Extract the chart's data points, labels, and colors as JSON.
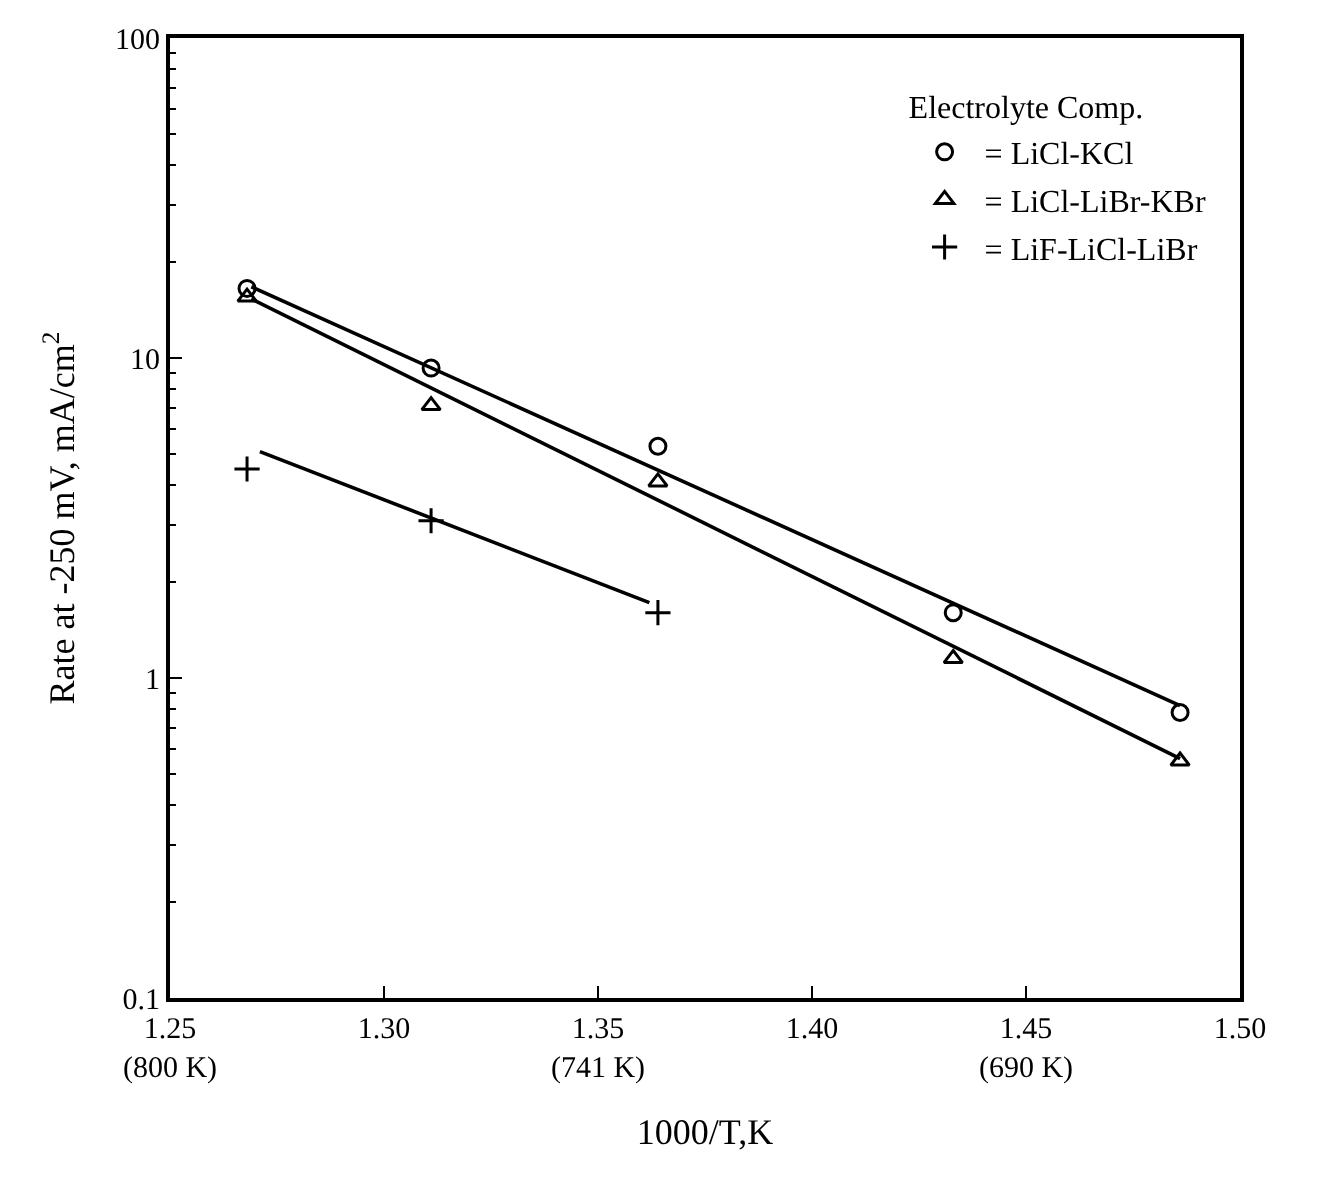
{
  "chart_data": {
    "type": "scatter",
    "xlabel": "1000/T,K",
    "ylabel": "Rate at -250 mV, mA/cm$^{2}$",
    "legend_title": "Electrolyte Comp.",
    "legend": "top right",
    "log": "y",
    "xlim": [
      1.25,
      1.5
    ],
    "ylim": [
      0.1,
      100
    ],
    "xticks": [
      {
        "value": 1.25,
        "label": "1.25\n(800 K)"
      },
      {
        "value": 1.3,
        "label": "1.30"
      },
      {
        "value": 1.35,
        "label": "1.35\n(741 K)"
      },
      {
        "value": 1.4,
        "label": "1.40"
      },
      {
        "value": 1.45,
        "label": "1.45\n(690 K)"
      },
      {
        "value": 1.5,
        "label": "1.50"
      }
    ],
    "yticks": [
      0.1,
      1,
      10,
      100
    ],
    "series": [
      {
        "name": "= LiCl-KCl",
        "color": "#000000",
        "marker": "circle",
        "x": [
          1.268,
          1.311,
          1.364,
          1.433,
          1.486
        ],
        "values": [
          16.5,
          9.3,
          5.3,
          1.6,
          0.78
        ]
      },
      {
        "name": "= LiCl-LiBr-KBr",
        "color": "#000000",
        "marker": "triangle",
        "x": [
          1.268,
          1.311,
          1.364,
          1.433,
          1.486
        ],
        "values": [
          15.5,
          7.1,
          4.1,
          1.15,
          0.55
        ]
      },
      {
        "name": "= LiF-LiCl-LiBr",
        "color": "#000000",
        "marker": "cross",
        "x": [
          1.268,
          1.311,
          1.364
        ],
        "values": [
          4.5,
          3.1,
          1.6
        ]
      },
      {
        "type": "line",
        "color": "#000000",
        "marker": "none",
        "x": [
          1.269,
          1.486
        ],
        "values": [
          16.7,
          0.82
        ]
      },
      {
        "type": "line",
        "color": "#000000",
        "marker": "none",
        "x": [
          1.269,
          1.486
        ],
        "values": [
          15.3,
          0.56
        ]
      },
      {
        "type": "line",
        "color": "#000000",
        "marker": "none",
        "x": [
          1.271,
          1.362
        ],
        "values": [
          5.1,
          1.72
        ]
      }
    ]
  }
}
